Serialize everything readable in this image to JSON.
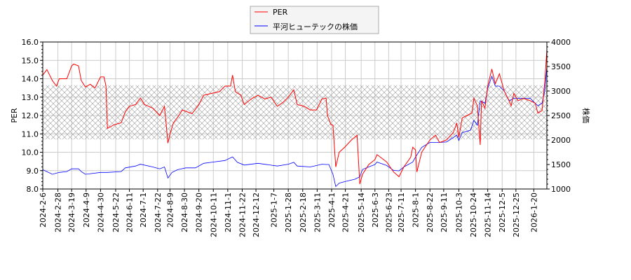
{
  "chart_data": {
    "type": "line",
    "x_range": [
      "2024-02-06",
      "2026-02-08"
    ],
    "grid": true,
    "legend_placement": "top-center",
    "ylabel_left": "PER",
    "ylabel_right": "株価",
    "ylim_left": [
      8,
      16
    ],
    "ylim_right": [
      1000,
      4000
    ],
    "yticks_left": [
      "8.0",
      "9.0",
      "10.0",
      "11.0",
      "12.0",
      "13.0",
      "14.0",
      "15.0",
      "16.0"
    ],
    "yticks_right": [
      "1000",
      "1500",
      "2000",
      "2500",
      "3000",
      "3500",
      "4000"
    ],
    "xticks": [
      "2024-2-6",
      "2024-2-28",
      "2024-3-19",
      "2024-4-9",
      "2024-4-30",
      "2024-5-22",
      "2024-6-11",
      "2024-7-1",
      "2024-7-22",
      "2024-8-9",
      "2024-8-30",
      "2024-9-20",
      "2024-10-11",
      "2024-11-1",
      "2024-11-22",
      "2024-12-12",
      "2025-1-7",
      "2025-1-28",
      "2025-2-18",
      "2025-3-11",
      "2025-4-1",
      "2025-4-21",
      "2025-5-14",
      "2025-6-3",
      "2025-6-23",
      "2025-7-11",
      "2025-8-1",
      "2025-8-22",
      "2025-9-11",
      "2025-10-3",
      "2025-10-24",
      "2025-11-14",
      "2025-12-5",
      "2025-12-25",
      "2026-1-20"
    ],
    "band_left": [
      10.7,
      13.65
    ],
    "colors": {
      "per": "#ff0000",
      "price": "#0000ff",
      "band": "#999999"
    },
    "series": [
      {
        "name": "PER",
        "axis": "left",
        "points": [
          [
            "2024-2-6",
            14.2
          ],
          [
            "2024-2-12",
            14.5
          ],
          [
            "2024-2-20",
            13.9
          ],
          [
            "2024-2-26",
            13.6
          ],
          [
            "2024-3-1",
            14.0
          ],
          [
            "2024-3-12",
            14.0
          ],
          [
            "2024-3-19",
            14.7
          ],
          [
            "2024-3-22",
            14.8
          ],
          [
            "2024-3-29",
            14.7
          ],
          [
            "2024-4-2",
            13.9
          ],
          [
            "2024-4-8",
            13.55
          ],
          [
            "2024-4-15",
            13.7
          ],
          [
            "2024-4-22",
            13.5
          ],
          [
            "2024-4-30",
            14.1
          ],
          [
            "2024-5-5",
            14.1
          ],
          [
            "2024-5-8",
            13.6
          ],
          [
            "2024-5-10",
            11.3
          ],
          [
            "2024-5-20",
            11.5
          ],
          [
            "2024-5-30",
            11.6
          ],
          [
            "2024-6-5",
            12.2
          ],
          [
            "2024-6-11",
            12.5
          ],
          [
            "2024-6-20",
            12.6
          ],
          [
            "2024-6-27",
            12.95
          ],
          [
            "2024-7-3",
            12.6
          ],
          [
            "2024-7-15",
            12.4
          ],
          [
            "2024-7-25",
            12.0
          ],
          [
            "2024-8-1",
            12.5
          ],
          [
            "2024-8-6",
            10.5
          ],
          [
            "2024-8-9",
            11.0
          ],
          [
            "2024-8-14",
            11.6
          ],
          [
            "2024-8-20",
            11.9
          ],
          [
            "2024-8-27",
            12.3
          ],
          [
            "2024-9-10",
            12.1
          ],
          [
            "2024-9-20",
            12.6
          ],
          [
            "2024-9-27",
            13.1
          ],
          [
            "2024-10-8",
            13.2
          ],
          [
            "2024-10-20",
            13.3
          ],
          [
            "2024-10-28",
            13.6
          ],
          [
            "2024-11-5",
            13.6
          ],
          [
            "2024-11-8",
            14.2
          ],
          [
            "2024-11-12",
            13.3
          ],
          [
            "2024-11-20",
            13.1
          ],
          [
            "2024-11-25",
            12.6
          ],
          [
            "2024-12-5",
            12.9
          ],
          [
            "2024-12-15",
            13.1
          ],
          [
            "2024-12-25",
            12.9
          ],
          [
            "2025-1-3",
            13.0
          ],
          [
            "2025-1-12",
            12.5
          ],
          [
            "2025-1-20",
            12.7
          ],
          [
            "2025-1-28",
            13.0
          ],
          [
            "2025-2-5",
            13.4
          ],
          [
            "2025-2-10",
            12.6
          ],
          [
            "2025-2-20",
            12.5
          ],
          [
            "2025-3-1",
            12.3
          ],
          [
            "2025-3-10",
            12.3
          ],
          [
            "2025-3-18",
            12.9
          ],
          [
            "2025-3-24",
            12.95
          ],
          [
            "2025-3-26",
            12.0
          ],
          [
            "2025-3-31",
            11.5
          ],
          [
            "2025-4-3",
            11.47
          ],
          [
            "2025-4-7",
            9.2
          ],
          [
            "2025-4-12",
            10.0
          ],
          [
            "2025-4-20",
            10.27
          ],
          [
            "2025-4-30",
            10.67
          ],
          [
            "2025-5-8",
            10.93
          ],
          [
            "2025-5-12",
            8.27
          ],
          [
            "2025-5-16",
            8.8
          ],
          [
            "2025-5-25",
            9.33
          ],
          [
            "2025-6-3",
            9.6
          ],
          [
            "2025-6-6",
            9.87
          ],
          [
            "2025-6-20",
            9.47
          ],
          [
            "2025-6-30",
            8.93
          ],
          [
            "2025-7-8",
            8.67
          ],
          [
            "2025-7-15",
            9.2
          ],
          [
            "2025-7-25",
            9.73
          ],
          [
            "2025-7-28",
            10.27
          ],
          [
            "2025-8-1",
            10.13
          ],
          [
            "2025-8-3",
            8.93
          ],
          [
            "2025-8-10",
            10.0
          ],
          [
            "2025-8-22",
            10.67
          ],
          [
            "2025-8-30",
            10.93
          ],
          [
            "2025-9-5",
            10.53
          ],
          [
            "2025-9-15",
            10.67
          ],
          [
            "2025-9-25",
            11.07
          ],
          [
            "2025-9-30",
            11.6
          ],
          [
            "2025-10-3",
            10.8
          ],
          [
            "2025-10-8",
            11.87
          ],
          [
            "2025-10-15",
            12.0
          ],
          [
            "2025-10-22",
            12.13
          ],
          [
            "2025-10-25",
            12.93
          ],
          [
            "2025-10-30",
            12.53
          ],
          [
            "2025-11-3",
            10.4
          ],
          [
            "2025-11-5",
            12.8
          ],
          [
            "2025-11-10",
            12.4
          ],
          [
            "2025-11-14",
            13.6
          ],
          [
            "2025-11-20",
            14.53
          ],
          [
            "2025-11-25",
            13.73
          ],
          [
            "2025-12-1",
            14.27
          ],
          [
            "2025-12-8",
            13.33
          ],
          [
            "2025-12-15",
            12.8
          ],
          [
            "2025-12-18",
            12.53
          ],
          [
            "2025-12-22",
            13.2
          ],
          [
            "2025-12-28",
            12.8
          ],
          [
            "2026-1-5",
            12.93
          ],
          [
            "2026-1-15",
            12.8
          ],
          [
            "2026-1-22",
            12.67
          ],
          [
            "2026-1-26",
            12.13
          ],
          [
            "2026-2-1",
            12.27
          ],
          [
            "2026-2-5",
            13.87
          ],
          [
            "2026-2-8",
            15.6
          ]
        ]
      },
      {
        "name": "平河ヒューテックの株価",
        "axis": "right",
        "points": [
          [
            "2024-2-6",
            1394
          ],
          [
            "2024-2-20",
            1300
          ],
          [
            "2024-3-1",
            1338
          ],
          [
            "2024-3-12",
            1356
          ],
          [
            "2024-3-19",
            1412
          ],
          [
            "2024-3-29",
            1412
          ],
          [
            "2024-4-2",
            1356
          ],
          [
            "2024-4-8",
            1300
          ],
          [
            "2024-4-30",
            1338
          ],
          [
            "2024-5-10",
            1338
          ],
          [
            "2024-5-30",
            1356
          ],
          [
            "2024-6-5",
            1431
          ],
          [
            "2024-6-20",
            1469
          ],
          [
            "2024-6-27",
            1506
          ],
          [
            "2024-7-15",
            1450
          ],
          [
            "2024-7-25",
            1412
          ],
          [
            "2024-8-1",
            1450
          ],
          [
            "2024-8-6",
            1225
          ],
          [
            "2024-8-12",
            1338
          ],
          [
            "2024-8-20",
            1394
          ],
          [
            "2024-9-1",
            1431
          ],
          [
            "2024-9-15",
            1431
          ],
          [
            "2024-9-27",
            1525
          ],
          [
            "2024-10-8",
            1544
          ],
          [
            "2024-10-28",
            1581
          ],
          [
            "2024-11-8",
            1656
          ],
          [
            "2024-11-15",
            1544
          ],
          [
            "2024-11-25",
            1488
          ],
          [
            "2024-12-15",
            1525
          ],
          [
            "2025-1-12",
            1469
          ],
          [
            "2025-1-28",
            1506
          ],
          [
            "2025-2-5",
            1544
          ],
          [
            "2025-2-10",
            1469
          ],
          [
            "2025-3-1",
            1450
          ],
          [
            "2025-3-18",
            1506
          ],
          [
            "2025-3-24",
            1500
          ],
          [
            "2025-3-28",
            1500
          ],
          [
            "2025-4-3",
            1300
          ],
          [
            "2025-4-7",
            1050
          ],
          [
            "2025-4-12",
            1120
          ],
          [
            "2025-4-20",
            1150
          ],
          [
            "2025-5-5",
            1200
          ],
          [
            "2025-5-12",
            1250
          ],
          [
            "2025-5-16",
            1400
          ],
          [
            "2025-5-25",
            1450
          ],
          [
            "2025-6-3",
            1500
          ],
          [
            "2025-6-6",
            1550
          ],
          [
            "2025-6-20",
            1480
          ],
          [
            "2025-6-30",
            1380
          ],
          [
            "2025-7-8",
            1370
          ],
          [
            "2025-7-15",
            1450
          ],
          [
            "2025-7-28",
            1550
          ],
          [
            "2025-8-1",
            1650
          ],
          [
            "2025-8-10",
            1850
          ],
          [
            "2025-8-22",
            1950
          ],
          [
            "2025-9-5",
            1950
          ],
          [
            "2025-9-15",
            1960
          ],
          [
            "2025-9-25",
            2050
          ],
          [
            "2025-9-30",
            2100
          ],
          [
            "2025-10-3",
            1990
          ],
          [
            "2025-10-8",
            2150
          ],
          [
            "2025-10-20",
            2200
          ],
          [
            "2025-10-25",
            2400
          ],
          [
            "2025-10-30",
            2300
          ],
          [
            "2025-11-3",
            2800
          ],
          [
            "2025-11-10",
            2750
          ],
          [
            "2025-11-14",
            3050
          ],
          [
            "2025-11-20",
            3300
          ],
          [
            "2025-11-25",
            3100
          ],
          [
            "2025-12-1",
            3100
          ],
          [
            "2025-12-8",
            3000
          ],
          [
            "2025-12-15",
            2800
          ],
          [
            "2025-12-22",
            2850
          ],
          [
            "2025-12-28",
            2850
          ],
          [
            "2026-1-15",
            2850
          ],
          [
            "2026-1-22",
            2750
          ],
          [
            "2026-1-26",
            2700
          ],
          [
            "2026-2-1",
            2750
          ],
          [
            "2026-2-5",
            3000
          ],
          [
            "2026-2-8",
            3500
          ]
        ]
      }
    ]
  }
}
